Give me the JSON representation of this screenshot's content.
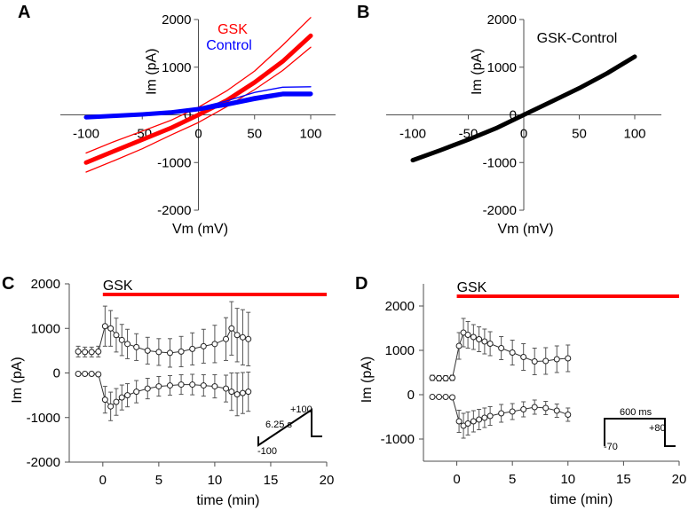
{
  "colors": {
    "gsk": "#ff0000",
    "control": "#0000ff",
    "diff": "#000000",
    "errbar": "#555555"
  },
  "chart_data": [
    {
      "panel": "A",
      "type": "line",
      "xlabel": "Vm (mV)",
      "ylabel": "Im (pA)",
      "xlim": [
        -100,
        100
      ],
      "ylim": [
        -2000,
        2000
      ],
      "xticks": [
        -100,
        -50,
        0,
        50,
        100
      ],
      "yticks": [
        -2000,
        -1000,
        0,
        1000,
        2000
      ],
      "legend": [
        "GSK",
        "Control"
      ],
      "series": [
        {
          "name": "GSK",
          "x": [
            -100,
            -75,
            -50,
            -25,
            0,
            25,
            50,
            75,
            100
          ],
          "y": [
            -1000,
            -760,
            -520,
            -280,
            0,
            300,
            680,
            1120,
            1660
          ]
        },
        {
          "name": "GSK upper",
          "x": [
            -100,
            -75,
            -50,
            -25,
            0,
            25,
            50,
            75,
            100
          ],
          "y": [
            -800,
            -560,
            -340,
            -120,
            160,
            500,
            920,
            1460,
            2040
          ]
        },
        {
          "name": "GSK lower",
          "x": [
            -100,
            -75,
            -50,
            -25,
            0,
            25,
            50,
            75,
            100
          ],
          "y": [
            -1200,
            -960,
            -710,
            -430,
            -160,
            170,
            530,
            930,
            1420
          ]
        },
        {
          "name": "Control",
          "x": [
            -100,
            -75,
            -50,
            -25,
            0,
            25,
            50,
            75,
            100
          ],
          "y": [
            -50,
            -20,
            10,
            50,
            120,
            220,
            350,
            440,
            440
          ]
        },
        {
          "name": "Control upper",
          "x": [
            -100,
            -75,
            -50,
            -25,
            0,
            25,
            50,
            75,
            100
          ],
          "y": [
            -40,
            -10,
            20,
            70,
            150,
            290,
            470,
            580,
            590
          ]
        },
        {
          "name": "Control lower",
          "x": [
            -100,
            -75,
            -50,
            -25,
            0,
            25,
            50,
            75,
            100
          ],
          "y": [
            -60,
            -30,
            0,
            30,
            90,
            180,
            300,
            400,
            400
          ]
        }
      ]
    },
    {
      "panel": "B",
      "type": "line",
      "xlabel": "Vm (mV)",
      "ylabel": "Im (pA)",
      "xlim": [
        -100,
        100
      ],
      "ylim": [
        -2000,
        2000
      ],
      "xticks": [
        -100,
        -50,
        0,
        50,
        100
      ],
      "yticks": [
        -2000,
        -1000,
        0,
        1000,
        2000
      ],
      "annotation": "GSK-Control",
      "series": [
        {
          "name": "GSK-Control",
          "x": [
            -100,
            -75,
            -50,
            -25,
            0,
            25,
            50,
            75,
            100
          ],
          "y": [
            -950,
            -740,
            -520,
            -280,
            0,
            280,
            560,
            870,
            1220
          ]
        }
      ]
    },
    {
      "panel": "C",
      "type": "scatter",
      "xlabel": "time (min)",
      "ylabel": "Im (pA)",
      "xlim": [
        -3,
        20
      ],
      "ylim": [
        -2000,
        2000
      ],
      "xticks": [
        0,
        5,
        10,
        15,
        20
      ],
      "yticks": [
        -2000,
        -1000,
        0,
        1000,
        2000
      ],
      "bar_label": "GSK",
      "bar_range": [
        0,
        20
      ],
      "inset": {
        "top_label": "+100",
        "bottom_label": "-100",
        "duration": "6.25 s"
      },
      "series": [
        {
          "name": "outward",
          "x": [
            -2.2,
            -1.6,
            -1,
            -0.4,
            0.2,
            0.7,
            1.2,
            1.7,
            2.2,
            3,
            4,
            5,
            6,
            7,
            8,
            9,
            10,
            11,
            11.5,
            12,
            12.5,
            13
          ],
          "y": [
            480,
            470,
            470,
            480,
            1050,
            1000,
            850,
            740,
            650,
            580,
            500,
            470,
            450,
            480,
            540,
            600,
            650,
            760,
            1000,
            850,
            800,
            760
          ],
          "err": [
            120,
            110,
            110,
            120,
            450,
            400,
            380,
            350,
            330,
            300,
            300,
            300,
            320,
            340,
            360,
            380,
            420,
            480,
            600,
            600,
            620,
            600
          ]
        },
        {
          "name": "inward",
          "x": [
            -2.2,
            -1.6,
            -1,
            -0.4,
            0.2,
            0.7,
            1.2,
            1.7,
            2.2,
            3,
            4,
            5,
            6,
            7,
            8,
            9,
            10,
            11,
            11.5,
            12,
            12.5,
            13
          ],
          "y": [
            -20,
            -20,
            -20,
            -30,
            -600,
            -750,
            -650,
            -550,
            -500,
            -420,
            -350,
            -300,
            -280,
            -260,
            -260,
            -280,
            -300,
            -350,
            -420,
            -480,
            -450,
            -420
          ],
          "err": [
            20,
            20,
            20,
            30,
            300,
            320,
            300,
            280,
            260,
            250,
            230,
            220,
            220,
            220,
            230,
            240,
            260,
            300,
            420,
            480,
            460,
            440
          ]
        }
      ]
    },
    {
      "panel": "D",
      "type": "scatter",
      "xlabel": "time (min)",
      "ylabel": "Im (pA)",
      "xlim": [
        -3,
        20
      ],
      "ylim": [
        -1500,
        2500
      ],
      "xticks": [
        0,
        5,
        10,
        15,
        20
      ],
      "yticks": [
        -1000,
        0,
        1000,
        2000
      ],
      "bar_label": "GSK",
      "bar_range": [
        0,
        20
      ],
      "inset": {
        "top_label": "600 ms",
        "right_label": "+80",
        "bottom_label": "-70"
      },
      "series": [
        {
          "name": "outward",
          "x": [
            -2.2,
            -1.6,
            -1,
            -0.4,
            0.2,
            0.6,
            1,
            1.5,
            2,
            2.5,
            3,
            4,
            5,
            6,
            7,
            8,
            9,
            10
          ],
          "y": [
            380,
            370,
            370,
            380,
            1100,
            1400,
            1350,
            1300,
            1250,
            1200,
            1150,
            1050,
            950,
            850,
            750,
            760,
            800,
            820
          ],
          "err": [
            60,
            60,
            60,
            60,
            300,
            320,
            300,
            280,
            280,
            280,
            270,
            260,
            280,
            300,
            300,
            300,
            300,
            300
          ]
        },
        {
          "name": "inward",
          "x": [
            -2.2,
            -1.6,
            -1,
            -0.4,
            0.2,
            0.6,
            1,
            1.5,
            2,
            2.5,
            3,
            4,
            5,
            6,
            7,
            8,
            9,
            10
          ],
          "y": [
            -50,
            -50,
            -50,
            -60,
            -600,
            -700,
            -650,
            -600,
            -560,
            -520,
            -480,
            -420,
            -380,
            -330,
            -280,
            -300,
            -360,
            -450
          ],
          "err": [
            20,
            20,
            20,
            20,
            250,
            280,
            260,
            240,
            230,
            220,
            210,
            200,
            180,
            170,
            160,
            150,
            150,
            150
          ]
        }
      ]
    }
  ]
}
